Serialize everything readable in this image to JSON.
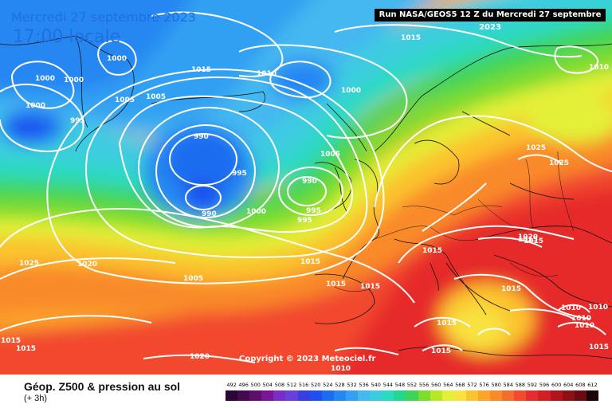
{
  "header": {
    "date": "Mercredi 27 septembre 2023",
    "local_time": "17:00 locale",
    "run_info": "Run NASA/GEOS5 12 Z du Mercredi 27 septembre 2023"
  },
  "copyright": "Copyright © 2023 Meteociel.fr",
  "legend": {
    "title": "Géop. Z500 & pression au sol",
    "subtitle": "(+ 3h)",
    "scale": [
      {
        "value": "492",
        "color": "#2a0636"
      },
      {
        "value": "496",
        "color": "#46094f"
      },
      {
        "value": "500",
        "color": "#5d0e6e"
      },
      {
        "value": "504",
        "color": "#7a1596"
      },
      {
        "value": "508",
        "color": "#7a2cc4"
      },
      {
        "value": "512",
        "color": "#6640d8"
      },
      {
        "value": "516",
        "color": "#3a3ee0"
      },
      {
        "value": "520",
        "color": "#1f4ff0"
      },
      {
        "value": "524",
        "color": "#1a6cf0"
      },
      {
        "value": "528",
        "color": "#2587f2"
      },
      {
        "value": "532",
        "color": "#33a0f2"
      },
      {
        "value": "536",
        "color": "#44b8f0"
      },
      {
        "value": "540",
        "color": "#3ccce0"
      },
      {
        "value": "544",
        "color": "#2bdac0"
      },
      {
        "value": "548",
        "color": "#22d88c"
      },
      {
        "value": "552",
        "color": "#3fd458"
      },
      {
        "value": "556",
        "color": "#7ddc2e"
      },
      {
        "value": "560",
        "color": "#b6e82a"
      },
      {
        "value": "564",
        "color": "#e4ef38"
      },
      {
        "value": "568",
        "color": "#f8e240"
      },
      {
        "value": "572",
        "color": "#fbc32f"
      },
      {
        "value": "576",
        "color": "#fba62a"
      },
      {
        "value": "580",
        "color": "#f98a2a"
      },
      {
        "value": "584",
        "color": "#f66c2c"
      },
      {
        "value": "588",
        "color": "#f24a2f"
      },
      {
        "value": "592",
        "color": "#e62c2c"
      },
      {
        "value": "596",
        "color": "#cf1e24"
      },
      {
        "value": "600",
        "color": "#b0151c"
      },
      {
        "value": "604",
        "color": "#8e0f16"
      },
      {
        "value": "608",
        "color": "#6b0a10"
      },
      {
        "value": "612",
        "color": "#1a0404"
      }
    ]
  },
  "isobar_labels": [
    "1015",
    "1000",
    "1000",
    "1000",
    "1000",
    "1005",
    "1005",
    "1015",
    "1010",
    "1000",
    "995",
    "990",
    "995",
    "990",
    "1000",
    "990",
    "995",
    "995",
    "1005",
    "1015",
    "1020",
    "1025",
    "1025",
    "1025",
    "1015",
    "1005",
    "1015",
    "1015",
    "1015",
    "1015",
    "1015",
    "1015",
    "1010",
    "1010",
    "1010",
    "1010",
    "1015",
    "1020",
    "1010",
    "1015",
    "1015",
    "1015",
    "1010",
    "1020"
  ]
}
